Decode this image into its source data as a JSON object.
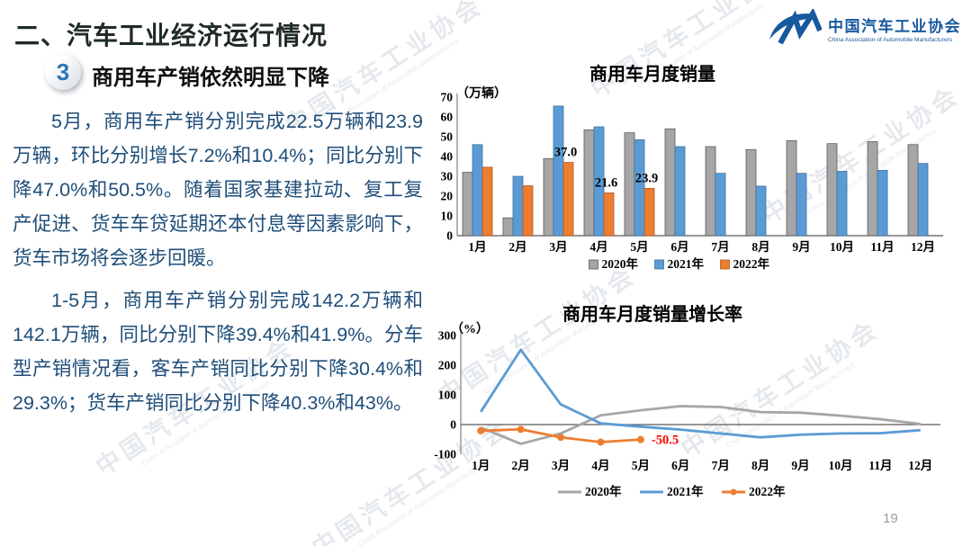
{
  "slide": {
    "title": "二、汽车工业经济运行情况",
    "badge": "3",
    "section_title": "商用车产销依然明显下降",
    "page_number": "19"
  },
  "paragraphs": [
    "5月，商用车产销分别完成22.5万辆和23.9万辆，环比分别增长7.2%和10.4%；同比分别下降47.0%和50.5%。随着国家基建拉动、复工复产促进、货车车贷延期还本付息等因素影响下，货车市场将会逐步回暖。",
    "1-5月，商用车产销分别完成142.2万辆和142.1万辆，同比分别下降39.4%和41.9%。分车型产销情况看，客车产销同比分别下降30.4%和29.3%；货车产销同比分别下降40.3%和43%。"
  ],
  "logo": {
    "cn": "中国汽车工业协会",
    "en": "China Association of Automobile Manufacturers"
  },
  "watermark": {
    "cn": "中国汽车工业协会",
    "en": "China Association of Automobile Manufacturers"
  },
  "colors": {
    "body_text": "#1F4E79",
    "series_gray": "#A6A6A6",
    "series_blue": "#5B9BD5",
    "series_orange": "#ED7D31",
    "annotation_red": "#FF0000",
    "logo_blue": "#17599F"
  },
  "chart_data": [
    {
      "type": "bar",
      "title": "商用车月度销量",
      "unit": "（万辆）",
      "categories": [
        "1月",
        "2月",
        "3月",
        "4月",
        "5月",
        "6月",
        "7月",
        "8月",
        "9月",
        "10月",
        "11月",
        "12月"
      ],
      "ylim": [
        0,
        70
      ],
      "yticks": [
        0,
        10,
        20,
        30,
        40,
        50,
        60,
        70
      ],
      "grid": false,
      "legend_position": "bottom",
      "series": [
        {
          "name": "2020年",
          "color": "#A6A6A6",
          "border": "#595959",
          "values": [
            32,
            9,
            39,
            53.5,
            52,
            54,
            45,
            43.5,
            48,
            46.5,
            47.5,
            46
          ]
        },
        {
          "name": "2021年",
          "color": "#5B9BD5",
          "border": "#41719C",
          "values": [
            46,
            30,
            65.5,
            55,
            48.5,
            45,
            31.5,
            25,
            31.5,
            32.5,
            33,
            36.5
          ]
        },
        {
          "name": "2022年",
          "color": "#ED7D31",
          "border": "#AE5A21",
          "values": [
            34.6,
            25.2,
            37,
            21.6,
            23.9,
            null,
            null,
            null,
            null,
            null,
            null,
            null
          ]
        }
      ],
      "point_labels": [
        {
          "series": "2022年",
          "category": "3月",
          "value": 37,
          "text": "37.0"
        },
        {
          "series": "2022年",
          "category": "4月",
          "value": 21.6,
          "text": "21.6"
        },
        {
          "series": "2022年",
          "category": "5月",
          "value": 23.9,
          "text": "23.9"
        }
      ]
    },
    {
      "type": "line",
      "title": "商用车月度销量增长率",
      "unit": "（%）",
      "categories": [
        "1月",
        "2月",
        "3月",
        "4月",
        "5月",
        "6月",
        "7月",
        "8月",
        "9月",
        "10月",
        "11月",
        "12月"
      ],
      "ylim": [
        -100,
        300
      ],
      "yticks": [
        300,
        200,
        100,
        0,
        -100
      ],
      "grid": false,
      "legend_position": "bottom",
      "series": [
        {
          "name": "2020年",
          "color": "#A6A6A6",
          "marker": false,
          "values": [
            -10,
            -65,
            -30,
            31,
            48,
            62,
            59,
            42,
            40,
            30,
            18,
            2
          ]
        },
        {
          "name": "2021年",
          "color": "#5B9BD5",
          "marker": false,
          "values": [
            43,
            252,
            68,
            4,
            -7,
            -17,
            -30,
            -43,
            -34,
            -30,
            -29,
            -19
          ]
        },
        {
          "name": "2022年",
          "color": "#ED7D31",
          "marker": true,
          "values": [
            -21,
            -16,
            -43,
            -59,
            -50.5,
            null,
            null,
            null,
            null,
            null,
            null,
            null
          ]
        }
      ],
      "annotations": [
        {
          "series": "2022年",
          "category": "5月",
          "value": -50.5,
          "text": "-50.5",
          "color": "#FF0000"
        }
      ]
    }
  ]
}
